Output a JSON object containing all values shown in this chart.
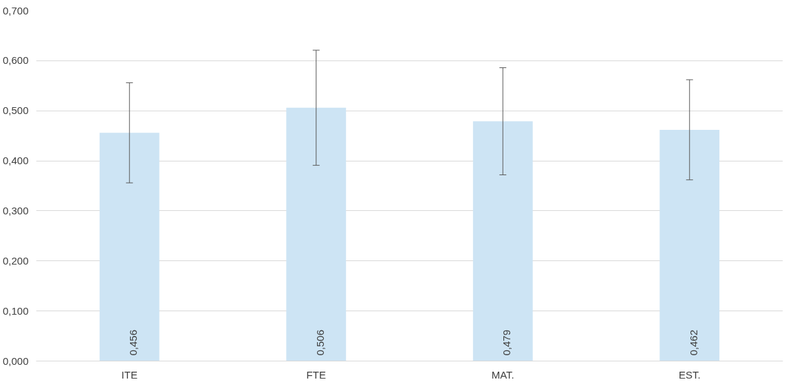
{
  "chart_data": {
    "type": "bar",
    "categories": [
      "ITE",
      "FTE",
      "MAT.",
      "EST."
    ],
    "values": [
      0.456,
      0.506,
      0.479,
      0.462
    ],
    "value_labels": [
      "0,456",
      "0,506",
      "0,479",
      "0,462"
    ],
    "errors": [
      0.1,
      0.115,
      0.107,
      0.1
    ],
    "color": "#cde4f4",
    "ylim": [
      0,
      0.7
    ],
    "yticks": [
      {
        "value": 0,
        "label": "0,000"
      },
      {
        "value": 0.1,
        "label": "0,100"
      },
      {
        "value": 0.2,
        "label": "0,200"
      },
      {
        "value": 0.3,
        "label": "0,300"
      },
      {
        "value": 0.4,
        "label": "0,400"
      },
      {
        "value": 0.5,
        "label": "0,500"
      },
      {
        "value": 0.6,
        "label": "0,600"
      },
      {
        "value": 0.7,
        "label": "0,700"
      }
    ],
    "grid": "y"
  }
}
